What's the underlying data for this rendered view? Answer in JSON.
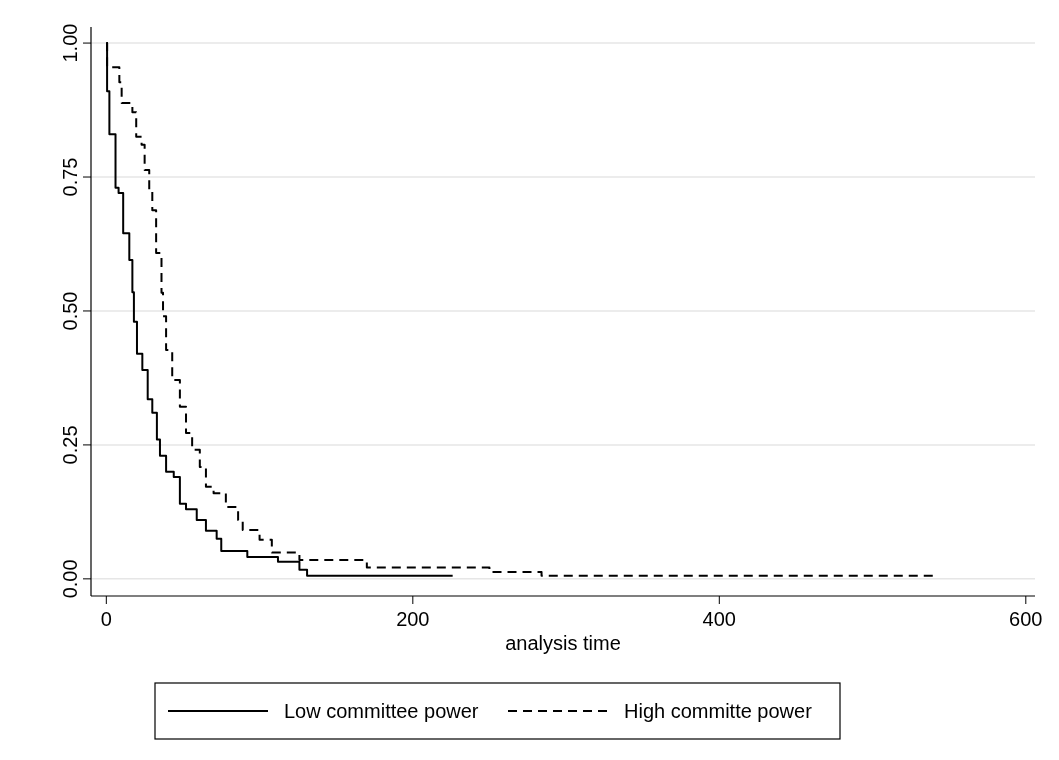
{
  "chart_data": {
    "type": "step",
    "xlabel": "analysis time",
    "xlim": [
      -10,
      606
    ],
    "xticks": [
      0,
      200,
      400,
      600
    ],
    "ylim": [
      -0.032,
      1.03
    ],
    "yticks": [
      {
        "value": 0,
        "label": "0.00"
      },
      {
        "value": 0.25,
        "label": "0.25"
      },
      {
        "value": 0.5,
        "label": "0.50"
      },
      {
        "value": 0.75,
        "label": "0.75"
      },
      {
        "value": 1,
        "label": "1.00"
      }
    ],
    "grid": "y",
    "legend": "bottom",
    "series": [
      {
        "name": "Low committee power",
        "color": "#000000",
        "line_style": "solid",
        "x": [
          0,
          0.5,
          2,
          6,
          8,
          11,
          15,
          17,
          18,
          20,
          23.5,
          27,
          30,
          33,
          35,
          39,
          44,
          48,
          52,
          59,
          65,
          72,
          75,
          92,
          112,
          126,
          131,
          226
        ],
        "values": [
          1,
          0.91,
          0.83,
          0.73,
          0.72,
          0.645,
          0.595,
          0.535,
          0.48,
          0.42,
          0.39,
          0.335,
          0.31,
          0.26,
          0.23,
          0.2,
          0.19,
          0.14,
          0.13,
          0.11,
          0.09,
          0.075,
          0.052,
          0.041,
          0.032,
          0.017,
          0.006,
          0.006
        ]
      },
      {
        "name": "High committe power",
        "color": "#000000",
        "line_style": "dashed",
        "x": [
          0,
          0.5,
          8.5,
          10,
          17,
          19.5,
          23,
          25,
          28,
          30,
          32.5,
          36,
          37,
          39,
          43,
          48,
          52,
          56,
          61,
          65,
          70,
          78,
          86,
          89,
          100,
          108,
          126,
          170,
          250,
          284,
          542
        ],
        "values": [
          1,
          0.955,
          0.927,
          0.888,
          0.871,
          0.825,
          0.81,
          0.763,
          0.726,
          0.688,
          0.608,
          0.534,
          0.49,
          0.427,
          0.371,
          0.321,
          0.272,
          0.241,
          0.209,
          0.172,
          0.16,
          0.134,
          0.11,
          0.091,
          0.073,
          0.049,
          0.035,
          0.021,
          0.013,
          0.006,
          0.006
        ]
      }
    ]
  }
}
